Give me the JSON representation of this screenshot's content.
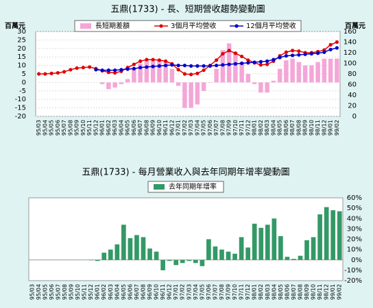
{
  "chart_data": [
    {
      "type": "combo",
      "title": "五鼎(1733) -  長、短期營收趨勢變動圖",
      "y_label": "百萬元",
      "y2_label": "百萬元",
      "categories": [
        "95/03",
        "95/04",
        "95/05",
        "95/06",
        "95/07",
        "95/08",
        "95/09",
        "95/10",
        "95/11",
        "95/12",
        "96/01",
        "96/02",
        "96/03",
        "96/04",
        "96/05",
        "96/06",
        "96/07",
        "96/08",
        "96/09",
        "96/10",
        "96/11",
        "96/12",
        "97/01",
        "97/02",
        "97/03",
        "97/04",
        "97/05",
        "97/06",
        "97/07",
        "97/08",
        "97/09",
        "97/10",
        "97/11",
        "97/12",
        "98/01",
        "98/02",
        "98/03",
        "98/04",
        "98/05",
        "98/06",
        "98/07",
        "98/08",
        "98/09",
        "98/10",
        "98/11",
        "98/12",
        "99/01",
        "99/02"
      ],
      "series": [
        {
          "name": "長短期差額",
          "kind": "bar",
          "color": "#f4a6d7",
          "axis": "y",
          "values": [
            null,
            null,
            null,
            null,
            null,
            null,
            null,
            null,
            null,
            null,
            -1,
            -4,
            -3,
            -1,
            2,
            8,
            11,
            13,
            13,
            13,
            12,
            8,
            -2,
            -15,
            -15,
            -13,
            -5,
            0,
            8,
            19,
            23,
            18,
            12,
            5,
            -1,
            -6,
            -6,
            1,
            8,
            13,
            14,
            12,
            10,
            10,
            12,
            14,
            14,
            14
          ]
        },
        {
          "name": "3個月平均營收",
          "kind": "line",
          "color": "#e00000",
          "axis": "y2",
          "values": [
            80,
            80,
            81,
            82,
            84,
            88,
            91,
            92,
            93,
            90,
            86,
            83,
            82,
            85,
            92,
            98,
            104,
            107,
            107,
            106,
            104,
            99,
            88,
            80,
            79,
            81,
            87,
            96,
            106,
            118,
            124,
            119,
            113,
            106,
            101,
            97,
            98,
            104,
            114,
            121,
            124,
            123,
            120,
            120,
            122,
            125,
            135,
            140
          ]
        },
        {
          "name": "12個月平均營收",
          "kind": "line",
          "color": "#0000cc",
          "axis": "y2",
          "values": [
            null,
            null,
            null,
            null,
            null,
            null,
            null,
            null,
            null,
            88,
            87,
            87,
            87,
            88,
            89,
            90,
            92,
            93,
            94,
            95,
            96,
            97,
            96,
            96,
            95,
            95,
            95,
            95,
            96,
            97,
            98,
            99,
            100,
            101,
            102,
            103,
            104,
            107,
            111,
            114,
            115,
            116,
            117,
            118,
            119,
            121,
            126,
            129
          ]
        }
      ],
      "ylim": [
        -20,
        30
      ],
      "yticks": [
        -20,
        -15,
        -10,
        -5,
        0,
        5,
        10,
        15,
        20,
        25,
        30
      ],
      "y2lim": [
        0,
        160
      ],
      "y2ticks": [
        0,
        20,
        40,
        60,
        80,
        100,
        120,
        140,
        160
      ],
      "grid": true,
      "legend": "top"
    },
    {
      "type": "bar",
      "title": "五鼎(1733) -  每月營業收入與去年同期年增率變動圖",
      "categories": [
        "95/03",
        "95/04",
        "95/05",
        "95/06",
        "95/07",
        "95/08",
        "95/09",
        "95/10",
        "95/11",
        "95/12",
        "96/01",
        "96/02",
        "96/03",
        "96/04",
        "96/05",
        "96/06",
        "96/07",
        "96/08",
        "96/09",
        "96/10",
        "96/11",
        "96/12",
        "97/01",
        "97/02",
        "97/03",
        "97/04",
        "97/05",
        "97/06",
        "97/07",
        "97/08",
        "97/09",
        "97/10",
        "97/11",
        "97/12",
        "98/01",
        "98/02",
        "98/03",
        "98/04",
        "98/05",
        "98/06",
        "98/07",
        "98/08",
        "98/09",
        "98/10",
        "98/11",
        "98/12",
        "99/01",
        "99/02"
      ],
      "series": [
        {
          "name": "去年同期年增率",
          "kind": "bar",
          "color": "#339966",
          "axis": "y",
          "values": [
            null,
            null,
            null,
            null,
            null,
            null,
            null,
            null,
            null,
            0,
            -1,
            7,
            10,
            15,
            34,
            21,
            24,
            22,
            11,
            8,
            -10,
            -1,
            -5,
            -3,
            -1,
            -3,
            -6,
            20,
            13,
            10,
            8,
            6,
            22,
            12,
            35,
            31,
            34,
            40,
            23,
            3,
            1,
            4,
            19,
            22,
            44,
            51,
            48,
            47
          ]
        }
      ],
      "ylim": [
        -20,
        60
      ],
      "yticks": [
        {
          "value": -20,
          "label": "-20%"
        },
        {
          "value": -10,
          "label": "-10%"
        },
        {
          "value": 0,
          "label": "0%"
        },
        {
          "value": 10,
          "label": "10%"
        },
        {
          "value": 20,
          "label": "20%"
        },
        {
          "value": 30,
          "label": "30%"
        },
        {
          "value": 40,
          "label": "40%"
        },
        {
          "value": 50,
          "label": "50%"
        },
        {
          "value": 60,
          "label": "60%"
        }
      ],
      "grid": false,
      "legend": "top"
    }
  ]
}
